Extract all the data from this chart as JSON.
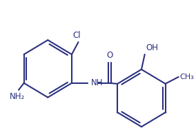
{
  "bg_color": "#ffffff",
  "line_color": "#2b3080",
  "line_width": 1.5,
  "font_size": 8.5,
  "figsize": [
    2.84,
    1.92
  ],
  "dpi": 100,
  "xlim": [
    0,
    284
  ],
  "ylim": [
    0,
    192
  ]
}
